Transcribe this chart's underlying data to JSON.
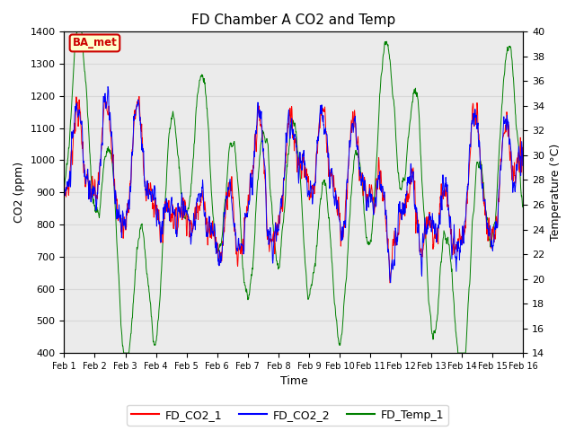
{
  "title": "FD Chamber A CO2 and Temp",
  "xlabel": "Time",
  "ylabel_left": "CO2 (ppm)",
  "ylabel_right": "Temperature (°C)",
  "ylim_left": [
    400,
    1400
  ],
  "ylim_right": [
    14,
    40
  ],
  "yticks_left": [
    400,
    500,
    600,
    700,
    800,
    900,
    1000,
    1100,
    1200,
    1300,
    1400
  ],
  "yticks_right": [
    14,
    16,
    18,
    20,
    22,
    24,
    26,
    28,
    30,
    32,
    34,
    36,
    38,
    40
  ],
  "annotation_text": "BA_met",
  "annotation_color": "#cc0000",
  "annotation_bg": "#ffffcc",
  "line_colors": {
    "FD_CO2_1": "red",
    "FD_CO2_2": "blue",
    "FD_Temp_1": "green"
  },
  "grid_color": "#d8d8d8",
  "plot_bg": "#ebebeb",
  "n_days": 15,
  "seed": 7
}
